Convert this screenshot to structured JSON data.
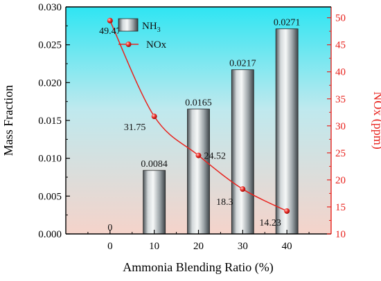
{
  "chart_data": {
    "type": "bar+line",
    "xlabel": "Ammonia Blending Ratio (%)",
    "x": [
      0,
      10,
      20,
      30,
      40
    ],
    "x_ticks": [
      "0",
      "10",
      "20",
      "30",
      "40"
    ],
    "xlim": [
      -10,
      50
    ],
    "left_axis": {
      "label": "Mass Fraction",
      "ylim": [
        0,
        0.03
      ],
      "ticks": [
        "0.000",
        "0.005",
        "0.010",
        "0.015",
        "0.020",
        "0.025",
        "0.030"
      ],
      "color": "#000000"
    },
    "right_axis": {
      "label": "NOx (ppm)",
      "ylim": [
        10,
        52
      ],
      "ticks": [
        "10",
        "15",
        "20",
        "25",
        "30",
        "35",
        "40",
        "45",
        "50"
      ],
      "color": "#e8231e"
    },
    "series": [
      {
        "name": "NH",
        "name_sub": "3",
        "type": "bar",
        "axis": "left",
        "values": [
          0,
          0.0084,
          0.0165,
          0.0217,
          0.0271
        ],
        "labels": [
          "0",
          "0.0084",
          "0.0165",
          "0.0217",
          "0.0271"
        ],
        "color": "#9aa1a5"
      },
      {
        "name": "NOx",
        "type": "line",
        "axis": "right",
        "values": [
          49.47,
          31.75,
          24.52,
          18.3,
          14.23
        ],
        "labels": [
          "49.47",
          "31.75",
          "24.52",
          "18.3",
          "14.23"
        ],
        "color": "#e8231e"
      }
    ],
    "legend_position": "top-left",
    "background_gradient": [
      "#2ee6f2",
      "#f3d6ce"
    ]
  }
}
